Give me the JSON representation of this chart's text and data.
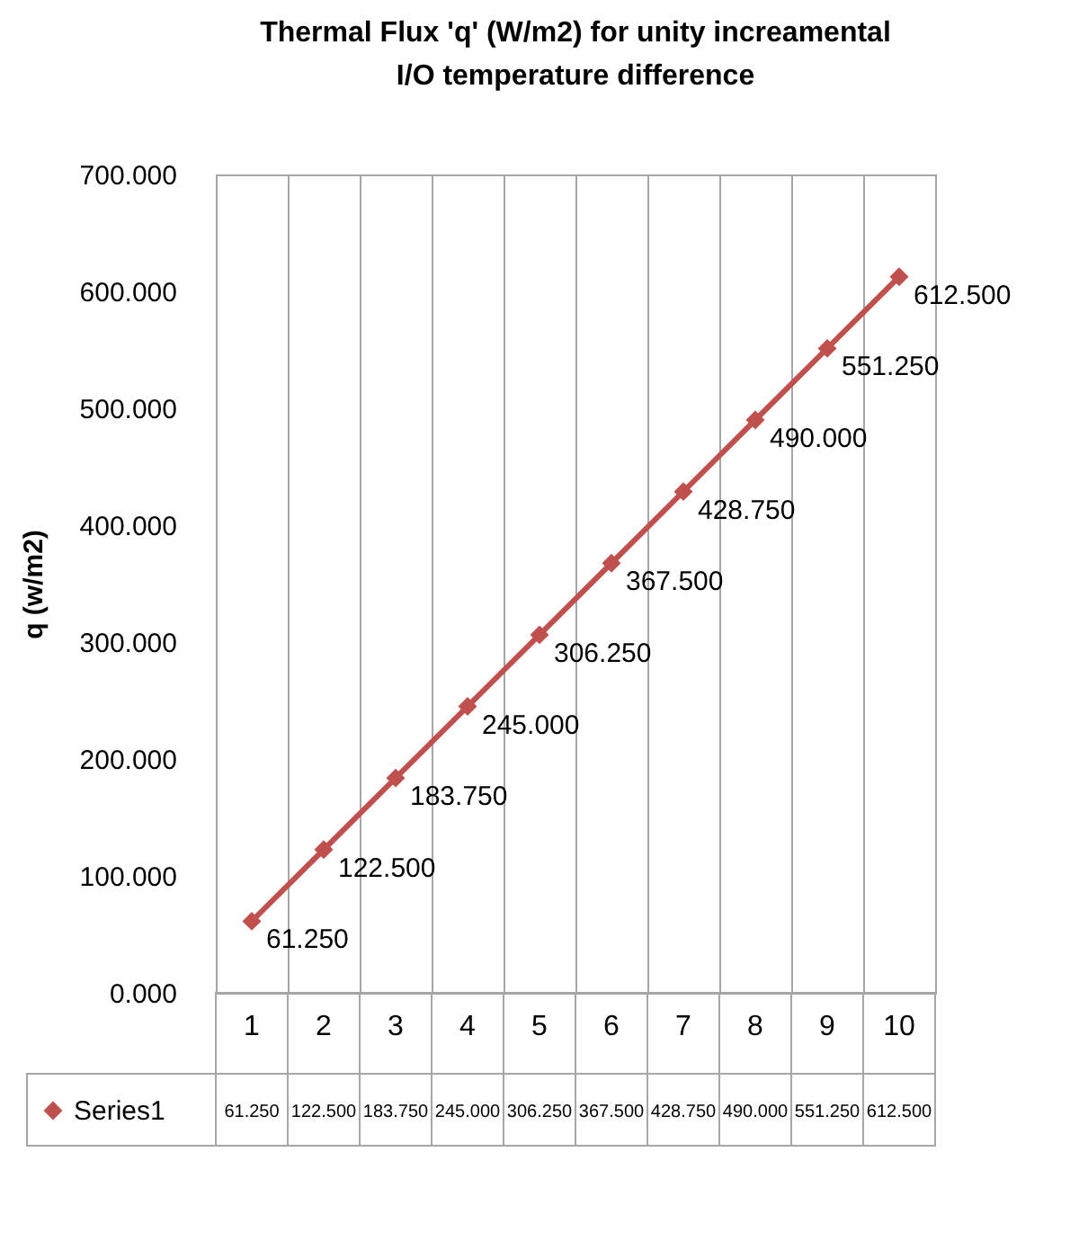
{
  "chart_data": {
    "type": "line",
    "title": "Thermal Flux 'q' (W/m2) for unity  increamental\nI/O temperature difference",
    "ylabel": "q (w/m2)",
    "categories": [
      "1",
      "2",
      "3",
      "4",
      "5",
      "6",
      "7",
      "8",
      "9",
      "10"
    ],
    "series": [
      {
        "name": "Series1",
        "color": "#c0504d",
        "values": [
          61.25,
          122.5,
          183.75,
          245,
          306.25,
          367.5,
          428.75,
          490,
          551.25,
          612.5
        ],
        "value_labels": [
          "61.250",
          "122.500",
          "183.750",
          "245.000",
          "306.250",
          "367.500",
          "428.750",
          "490.000",
          "551.250",
          "612.500"
        ]
      }
    ],
    "ylim": [
      0,
      700
    ],
    "yticks": [
      {
        "value": 0,
        "label": "0.000"
      },
      {
        "value": 100,
        "label": "100.000"
      },
      {
        "value": 200,
        "label": "200.000"
      },
      {
        "value": 300,
        "label": "300.000"
      },
      {
        "value": 400,
        "label": "400.000"
      },
      {
        "value": 500,
        "label": "500.000"
      },
      {
        "value": 600,
        "label": "600.000"
      },
      {
        "value": 700,
        "label": "700.000"
      }
    ],
    "grid": "x",
    "legend": "bottom",
    "marker": "diamond",
    "line_style": "solid"
  }
}
